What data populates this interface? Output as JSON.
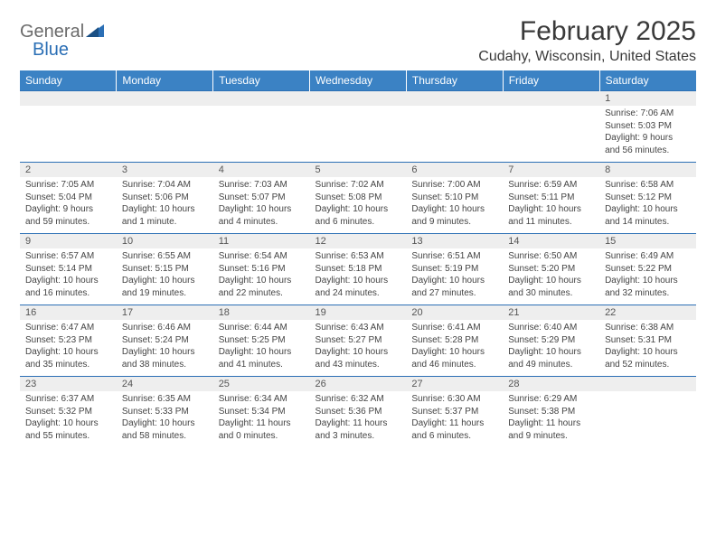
{
  "logo": {
    "text1": "General",
    "text2": "Blue"
  },
  "title": "February 2025",
  "location": "Cudahy, Wisconsin, United States",
  "colors": {
    "header_bg": "#3b82c4",
    "header_text": "#ffffff",
    "dayrow_bg": "#eeeeee",
    "dayborder": "#2b6fb5",
    "body_text": "#444444",
    "title_text": "#3a3a3a",
    "logo_gray": "#6b6b6b",
    "logo_blue": "#2b6fb5",
    "background": "#ffffff"
  },
  "weekdays": [
    "Sunday",
    "Monday",
    "Tuesday",
    "Wednesday",
    "Thursday",
    "Friday",
    "Saturday"
  ],
  "weeks": [
    {
      "days": [
        "",
        "",
        "",
        "",
        "",
        "",
        "1"
      ],
      "cells": [
        null,
        null,
        null,
        null,
        null,
        null,
        {
          "sunrise": "Sunrise: 7:06 AM",
          "sunset": "Sunset: 5:03 PM",
          "day1": "Daylight: 9 hours",
          "day2": "and 56 minutes."
        }
      ]
    },
    {
      "days": [
        "2",
        "3",
        "4",
        "5",
        "6",
        "7",
        "8"
      ],
      "cells": [
        {
          "sunrise": "Sunrise: 7:05 AM",
          "sunset": "Sunset: 5:04 PM",
          "day1": "Daylight: 9 hours",
          "day2": "and 59 minutes."
        },
        {
          "sunrise": "Sunrise: 7:04 AM",
          "sunset": "Sunset: 5:06 PM",
          "day1": "Daylight: 10 hours",
          "day2": "and 1 minute."
        },
        {
          "sunrise": "Sunrise: 7:03 AM",
          "sunset": "Sunset: 5:07 PM",
          "day1": "Daylight: 10 hours",
          "day2": "and 4 minutes."
        },
        {
          "sunrise": "Sunrise: 7:02 AM",
          "sunset": "Sunset: 5:08 PM",
          "day1": "Daylight: 10 hours",
          "day2": "and 6 minutes."
        },
        {
          "sunrise": "Sunrise: 7:00 AM",
          "sunset": "Sunset: 5:10 PM",
          "day1": "Daylight: 10 hours",
          "day2": "and 9 minutes."
        },
        {
          "sunrise": "Sunrise: 6:59 AM",
          "sunset": "Sunset: 5:11 PM",
          "day1": "Daylight: 10 hours",
          "day2": "and 11 minutes."
        },
        {
          "sunrise": "Sunrise: 6:58 AM",
          "sunset": "Sunset: 5:12 PM",
          "day1": "Daylight: 10 hours",
          "day2": "and 14 minutes."
        }
      ]
    },
    {
      "days": [
        "9",
        "10",
        "11",
        "12",
        "13",
        "14",
        "15"
      ],
      "cells": [
        {
          "sunrise": "Sunrise: 6:57 AM",
          "sunset": "Sunset: 5:14 PM",
          "day1": "Daylight: 10 hours",
          "day2": "and 16 minutes."
        },
        {
          "sunrise": "Sunrise: 6:55 AM",
          "sunset": "Sunset: 5:15 PM",
          "day1": "Daylight: 10 hours",
          "day2": "and 19 minutes."
        },
        {
          "sunrise": "Sunrise: 6:54 AM",
          "sunset": "Sunset: 5:16 PM",
          "day1": "Daylight: 10 hours",
          "day2": "and 22 minutes."
        },
        {
          "sunrise": "Sunrise: 6:53 AM",
          "sunset": "Sunset: 5:18 PM",
          "day1": "Daylight: 10 hours",
          "day2": "and 24 minutes."
        },
        {
          "sunrise": "Sunrise: 6:51 AM",
          "sunset": "Sunset: 5:19 PM",
          "day1": "Daylight: 10 hours",
          "day2": "and 27 minutes."
        },
        {
          "sunrise": "Sunrise: 6:50 AM",
          "sunset": "Sunset: 5:20 PM",
          "day1": "Daylight: 10 hours",
          "day2": "and 30 minutes."
        },
        {
          "sunrise": "Sunrise: 6:49 AM",
          "sunset": "Sunset: 5:22 PM",
          "day1": "Daylight: 10 hours",
          "day2": "and 32 minutes."
        }
      ]
    },
    {
      "days": [
        "16",
        "17",
        "18",
        "19",
        "20",
        "21",
        "22"
      ],
      "cells": [
        {
          "sunrise": "Sunrise: 6:47 AM",
          "sunset": "Sunset: 5:23 PM",
          "day1": "Daylight: 10 hours",
          "day2": "and 35 minutes."
        },
        {
          "sunrise": "Sunrise: 6:46 AM",
          "sunset": "Sunset: 5:24 PM",
          "day1": "Daylight: 10 hours",
          "day2": "and 38 minutes."
        },
        {
          "sunrise": "Sunrise: 6:44 AM",
          "sunset": "Sunset: 5:25 PM",
          "day1": "Daylight: 10 hours",
          "day2": "and 41 minutes."
        },
        {
          "sunrise": "Sunrise: 6:43 AM",
          "sunset": "Sunset: 5:27 PM",
          "day1": "Daylight: 10 hours",
          "day2": "and 43 minutes."
        },
        {
          "sunrise": "Sunrise: 6:41 AM",
          "sunset": "Sunset: 5:28 PM",
          "day1": "Daylight: 10 hours",
          "day2": "and 46 minutes."
        },
        {
          "sunrise": "Sunrise: 6:40 AM",
          "sunset": "Sunset: 5:29 PM",
          "day1": "Daylight: 10 hours",
          "day2": "and 49 minutes."
        },
        {
          "sunrise": "Sunrise: 6:38 AM",
          "sunset": "Sunset: 5:31 PM",
          "day1": "Daylight: 10 hours",
          "day2": "and 52 minutes."
        }
      ]
    },
    {
      "days": [
        "23",
        "24",
        "25",
        "26",
        "27",
        "28",
        ""
      ],
      "cells": [
        {
          "sunrise": "Sunrise: 6:37 AM",
          "sunset": "Sunset: 5:32 PM",
          "day1": "Daylight: 10 hours",
          "day2": "and 55 minutes."
        },
        {
          "sunrise": "Sunrise: 6:35 AM",
          "sunset": "Sunset: 5:33 PM",
          "day1": "Daylight: 10 hours",
          "day2": "and 58 minutes."
        },
        {
          "sunrise": "Sunrise: 6:34 AM",
          "sunset": "Sunset: 5:34 PM",
          "day1": "Daylight: 11 hours",
          "day2": "and 0 minutes."
        },
        {
          "sunrise": "Sunrise: 6:32 AM",
          "sunset": "Sunset: 5:36 PM",
          "day1": "Daylight: 11 hours",
          "day2": "and 3 minutes."
        },
        {
          "sunrise": "Sunrise: 6:30 AM",
          "sunset": "Sunset: 5:37 PM",
          "day1": "Daylight: 11 hours",
          "day2": "and 6 minutes."
        },
        {
          "sunrise": "Sunrise: 6:29 AM",
          "sunset": "Sunset: 5:38 PM",
          "day1": "Daylight: 11 hours",
          "day2": "and 9 minutes."
        },
        null
      ]
    }
  ]
}
